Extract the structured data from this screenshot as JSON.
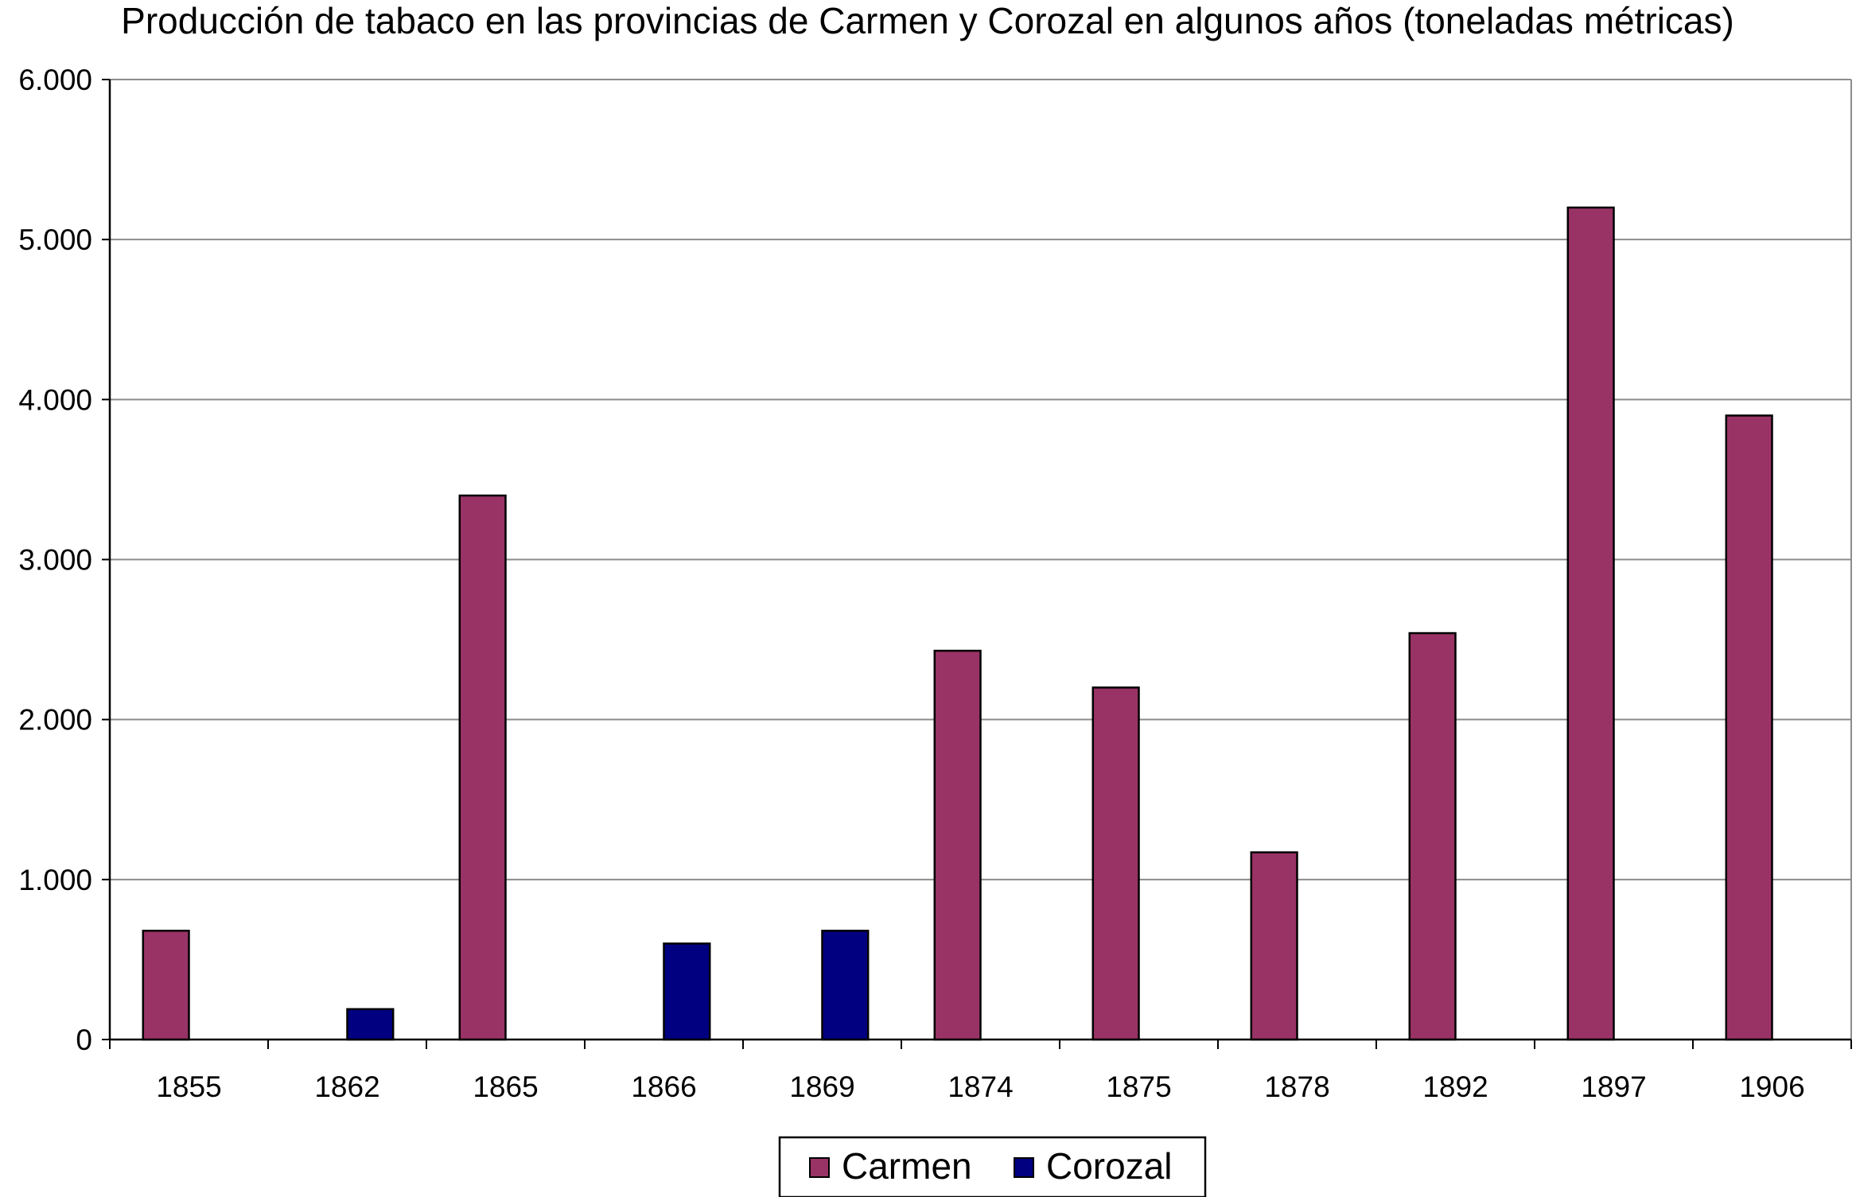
{
  "chart_data": {
    "type": "bar",
    "title": "Producción de tabaco en las provincias de Carmen y Corozal en algunos años (toneladas métricas)",
    "xlabel": "",
    "ylabel": "",
    "categories": [
      "1855",
      "1862",
      "1865",
      "1866",
      "1869",
      "1874",
      "1875",
      "1878",
      "1892",
      "1897",
      "1906"
    ],
    "series": [
      {
        "name": "Carmen",
        "color": "#993366",
        "values": [
          680,
          null,
          3400,
          null,
          null,
          2430,
          2200,
          1170,
          2540,
          5200,
          3900
        ]
      },
      {
        "name": "Corozal",
        "color": "#000080",
        "values": [
          null,
          190,
          null,
          600,
          680,
          null,
          null,
          null,
          null,
          null,
          null
        ]
      }
    ],
    "ylim": [
      0,
      6000
    ],
    "yticks": [
      0,
      1000,
      2000,
      3000,
      4000,
      5000,
      6000
    ],
    "ytick_labels": [
      "0",
      "1.000",
      "2.000",
      "3.000",
      "4.000",
      "5.000",
      "6.000"
    ],
    "grid": true,
    "legend_position": "bottom"
  }
}
